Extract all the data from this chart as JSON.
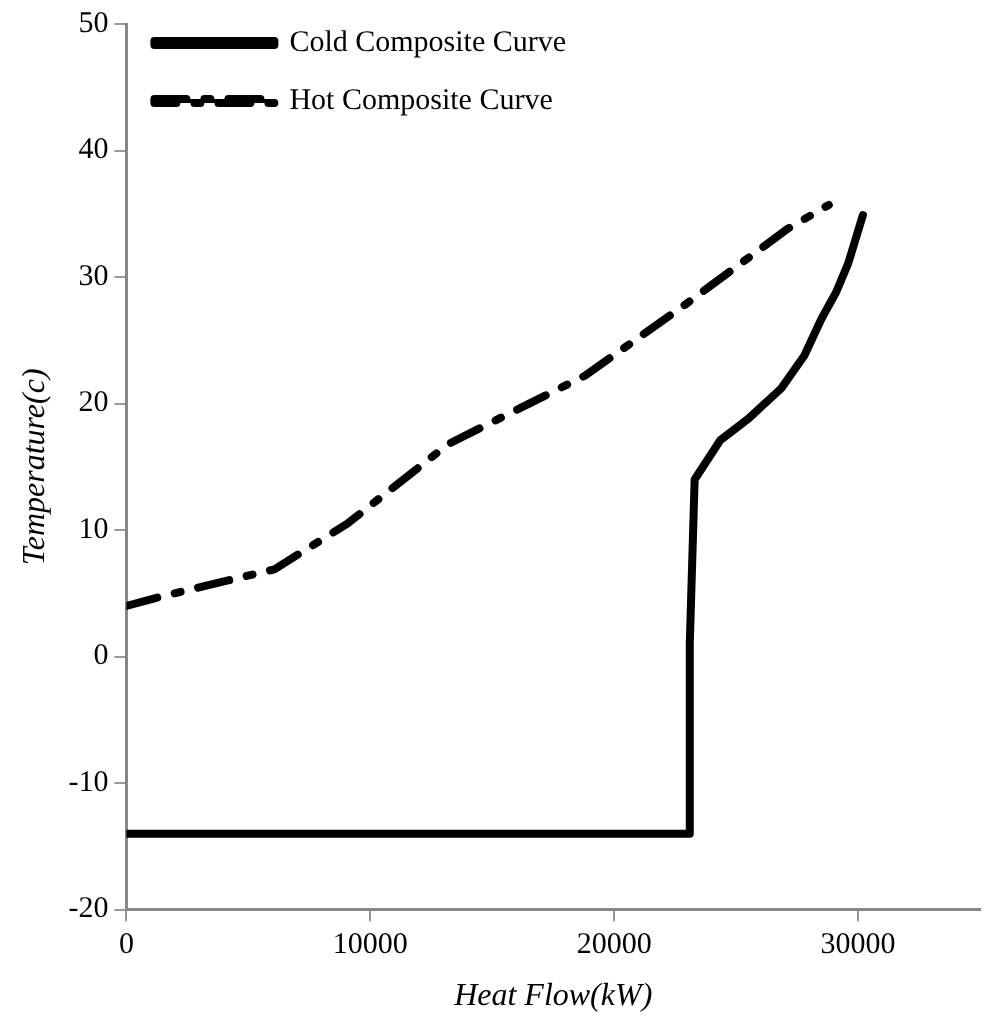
{
  "chart_data": {
    "type": "line",
    "xlabel": "Heat Flow(kW)",
    "ylabel": "Temperature(c)",
    "xlim": [
      0,
      35000
    ],
    "xticks": [
      0,
      10000,
      20000,
      30000
    ],
    "ylim": [
      -20,
      50
    ],
    "yticks": [
      -20,
      -10,
      0,
      10,
      20,
      30,
      40,
      50
    ],
    "grid": false,
    "legend": "top",
    "marker": "none",
    "series": [
      {
        "name": "Cold Composite Curve",
        "color": "#000000",
        "line_style": "solid",
        "x": [
          0,
          23100,
          23100,
          23300,
          24350,
          25500,
          26850,
          27800,
          28500,
          29100,
          29600,
          30200
        ],
        "values": [
          -14,
          -14,
          1,
          14,
          17.1,
          18.8,
          21.2,
          23.8,
          26.7,
          28.8,
          31.1,
          34.9
        ]
      },
      {
        "name": "Hot Composite Curve",
        "color": "#000000",
        "line_style": "dashed",
        "x": [
          0,
          1330,
          6070,
          9060,
          13200,
          18800,
          22900,
          27100,
          28800
        ],
        "values": [
          4,
          4.7,
          6.9,
          10.5,
          16.8,
          22.2,
          27.8,
          33.8,
          35.7
        ]
      }
    ]
  }
}
